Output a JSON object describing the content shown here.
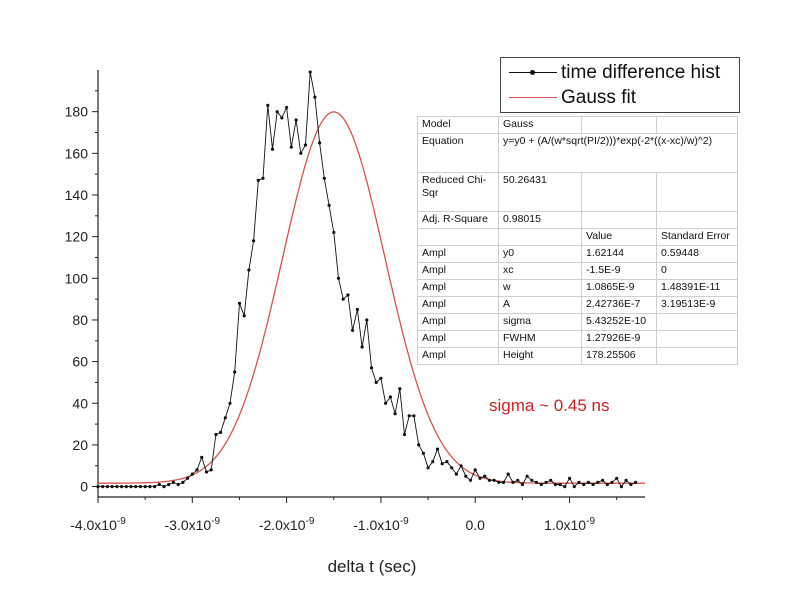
{
  "chart_data": {
    "type": "line",
    "xlabel": "delta t (sec)",
    "ylabel": "",
    "xlim": [
      -4e-09,
      1.8e-09
    ],
    "ylim": [
      -5,
      200
    ],
    "grid": false,
    "legend_position": "top-right",
    "x_ticks": [
      {
        "value": -4e-09,
        "mantissa": "-4.0x10",
        "exp": "-9"
      },
      {
        "value": -3e-09,
        "mantissa": "-3.0x10",
        "exp": "-9"
      },
      {
        "value": -2e-09,
        "mantissa": "-2.0x10",
        "exp": "-9"
      },
      {
        "value": -1e-09,
        "mantissa": "-1.0x10",
        "exp": "-9"
      },
      {
        "value": 0.0,
        "mantissa": "0.0",
        "exp": ""
      },
      {
        "value": 1e-09,
        "mantissa": "1.0x10",
        "exp": "-9"
      }
    ],
    "y_ticks": [
      0,
      20,
      40,
      60,
      80,
      100,
      120,
      140,
      160,
      180
    ],
    "series": [
      {
        "name": "time difference hist",
        "color": "#111111",
        "style": "line+markers",
        "x_start": -4e-09,
        "x_step": 5e-11,
        "values": [
          0,
          0,
          0,
          0,
          0,
          0,
          0,
          0,
          0,
          0,
          0,
          0,
          0,
          1,
          0,
          1,
          2,
          1,
          2,
          4,
          6,
          8,
          14,
          7,
          8,
          25,
          26,
          33,
          40,
          55,
          88,
          82,
          104,
          118,
          147,
          148,
          183,
          162,
          180,
          177,
          182,
          163,
          176,
          160,
          164,
          199,
          187,
          165,
          148,
          135,
          122,
          100,
          90,
          92,
          75,
          85,
          67,
          80,
          57,
          50,
          52,
          40,
          43,
          35,
          47,
          25,
          34,
          34,
          20,
          16,
          9,
          12,
          18,
          11,
          12,
          9,
          6,
          10,
          5,
          3,
          8,
          4,
          5,
          3,
          3,
          2,
          2,
          6,
          2,
          3,
          1,
          5,
          3,
          2,
          1,
          2,
          3,
          1,
          1,
          0,
          4,
          0,
          2,
          1,
          2,
          1,
          2,
          3,
          1,
          2,
          4,
          0,
          3,
          1,
          2
        ]
      },
      {
        "name": "Gauss fit",
        "color": "#d9534f",
        "style": "line"
      }
    ],
    "fit": {
      "y0": 1.62144,
      "xc": -1.5e-09,
      "w": 1.0865e-09,
      "A": 2.42736e-07
    }
  },
  "legend": {
    "items": [
      {
        "label": "time difference hist"
      },
      {
        "label": "Gauss fit"
      }
    ]
  },
  "fit_table": {
    "model": [
      "Model",
      "Gauss"
    ],
    "equation": [
      "Equation",
      "y=y0 + (A/(w*sqrt(PI/2)))*exp(-2*((x-xc)/w)^2)"
    ],
    "chisqr": [
      "Reduced Chi-Sqr",
      "50.26431"
    ],
    "rsquare": [
      "Adj. R-Square",
      "0.98015"
    ],
    "header": [
      "Value",
      "Standard Error"
    ],
    "rows": [
      {
        "c1": "Ampl",
        "c2": "y0",
        "c3": "1.62144",
        "c4": "0.59448"
      },
      {
        "c1": "Ampl",
        "c2": "xc",
        "c3": "-1.5E-9",
        "c4": "0"
      },
      {
        "c1": "Ampl",
        "c2": "w",
        "c3": "1.0865E-9",
        "c4": "1.48391E-11"
      },
      {
        "c1": "Ampl",
        "c2": "A",
        "c3": "2.42736E-7",
        "c4": "3.19513E-9"
      },
      {
        "c1": "Ampl",
        "c2": "sigma",
        "c3": "5.43252E-10",
        "c4": ""
      },
      {
        "c1": "Ampl",
        "c2": "FWHM",
        "c3": "1.27926E-9",
        "c4": ""
      },
      {
        "c1": "Ampl",
        "c2": "Height",
        "c3": "178.25506",
        "c4": ""
      }
    ]
  },
  "annotation": "sigma ~ 0.45 ns"
}
